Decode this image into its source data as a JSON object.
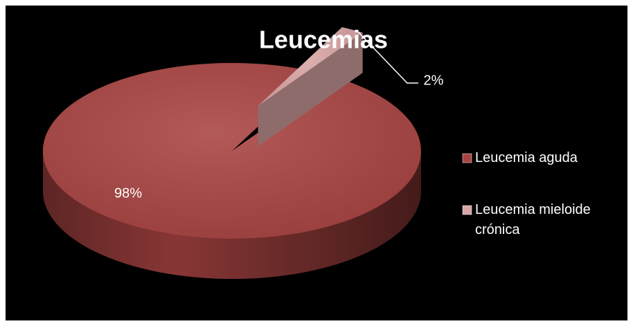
{
  "chart_data": {
    "type": "pie",
    "title": "Leucemias",
    "categories": [
      "Leucemia aguda",
      "Leucemia mieloide crónica"
    ],
    "values": [
      98,
      2
    ],
    "value_labels": [
      "98%",
      "2%"
    ],
    "colors": [
      "#a94442",
      "#d9a6a5"
    ],
    "legend": "right"
  }
}
